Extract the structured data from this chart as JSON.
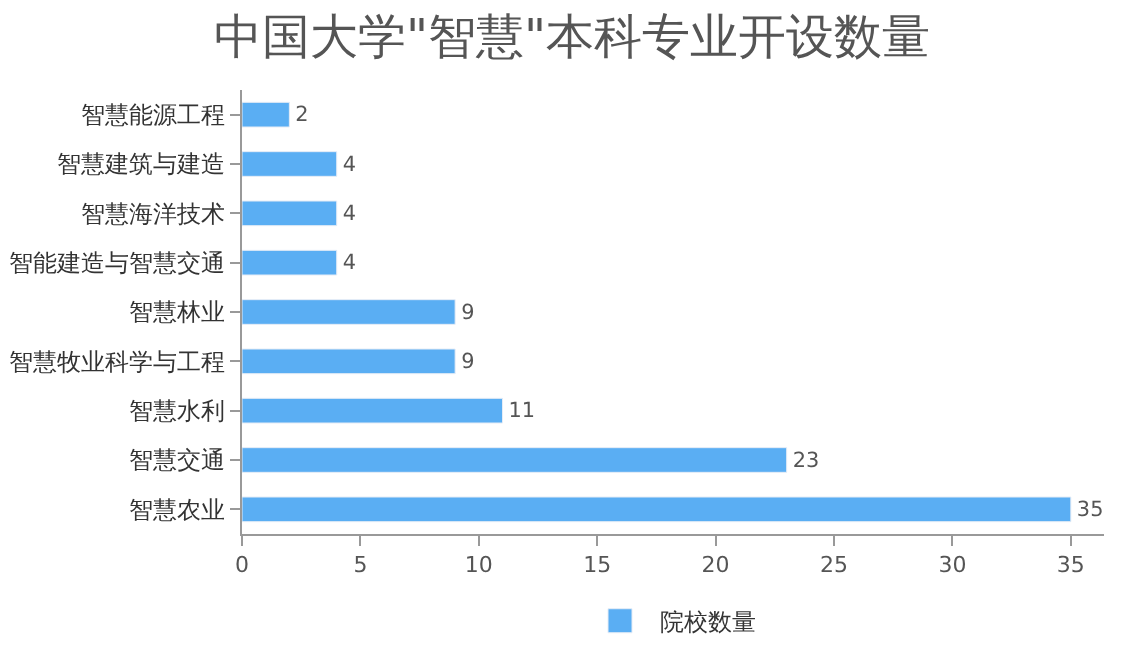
{
  "chart_data": {
    "type": "bar",
    "orientation": "horizontal",
    "title": "中国大学\"智慧\"本科专业开设数量",
    "categories": [
      "智慧能源工程",
      "智慧建筑与建造",
      "智慧海洋技术",
      "智能建造与智慧交通",
      "智慧林业",
      "智慧牧业科学与工程",
      "智慧水利",
      "智慧交通",
      "智慧农业"
    ],
    "series": [
      {
        "name": "院校数量",
        "color": "#5aaef3",
        "values": [
          2,
          4,
          4,
          4,
          9,
          9,
          11,
          23,
          35
        ]
      }
    ],
    "xlim": [
      0,
      36.4
    ],
    "xticks": [
      0,
      5,
      10,
      15,
      20,
      25,
      30,
      35
    ],
    "data_labels": true,
    "legend": "bottom"
  }
}
